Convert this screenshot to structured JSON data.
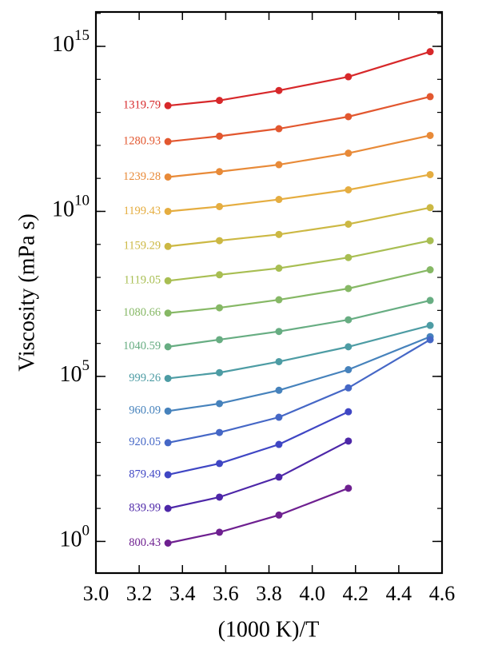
{
  "chart_data": {
    "type": "line",
    "y_label": "Viscosity (mPa s)",
    "x_label": "(1000 K)/T",
    "log_y": true,
    "x": [
      3.333,
      3.571,
      3.846,
      4.167,
      4.545
    ],
    "xlim": [
      3.0,
      4.6
    ],
    "xticks": [
      {
        "value": 3.0,
        "label": "3.0"
      },
      3.2,
      3.4,
      3.6,
      3.8,
      {
        "value": 4.0,
        "label": "4.0"
      },
      4.2,
      4.4,
      4.6
    ],
    "ylim": [
      0.11,
      1.1e+16
    ],
    "yticks": [
      {
        "value": 1,
        "label": "10^0"
      },
      {
        "value": 100000.0,
        "label": "10^5"
      },
      {
        "value": 10000000000.0,
        "label": "10^10"
      },
      {
        "value": 1000000000000000.0,
        "label": "10^15"
      }
    ],
    "series": [
      {
        "name": "1319.79",
        "color": "#d7282a",
        "values": [
          16000000000000.0,
          23000000000000.0,
          46000000000000.0,
          120000000000000.0,
          690000000000000.0
        ]
      },
      {
        "name": "1280.93",
        "color": "#e2572f",
        "values": [
          1300000000000.0,
          1900000000000.0,
          3200000000000.0,
          7400000000000.0,
          30000000000000.0
        ]
      },
      {
        "name": "1239.28",
        "color": "#e88a38",
        "values": [
          110000000000.0,
          160000000000.0,
          260000000000.0,
          580000000000.0,
          2000000000000.0
        ]
      },
      {
        "name": "1199.43",
        "color": "#e5ad40",
        "values": [
          10000000000.0,
          14000000000.0,
          23000000000.0,
          45000000000.0,
          130000000000.0
        ]
      },
      {
        "name": "1159.29",
        "color": "#ccb843",
        "values": [
          870000000.0,
          1300000000.0,
          2000000000.0,
          4100000000.0,
          13000000000.0
        ]
      },
      {
        "name": "1119.05",
        "color": "#a8be52",
        "values": [
          79000000.0,
          120000000.0,
          190000000.0,
          400000000.0,
          1300000000.0
        ]
      },
      {
        "name": "1080.66",
        "color": "#86b865",
        "values": [
          8300000.0,
          12000000.0,
          21000000.0,
          46000000.0,
          170000000.0
        ]
      },
      {
        "name": "1040.59",
        "color": "#67ad82",
        "values": [
          790000.0,
          1300000.0,
          2300000.0,
          5200000.0,
          20000000.0
        ]
      },
      {
        "name": "999.26",
        "color": "#4d9ca4",
        "values": [
          87000.0,
          130000.0,
          280000.0,
          790000.0,
          3500000.0
        ]
      },
      {
        "name": "960.09",
        "color": "#4682bc",
        "values": [
          8900.0,
          15000.0,
          38000.0,
          160000.0,
          1600000.0
        ]
      },
      {
        "name": "920.05",
        "color": "#4567c6",
        "values": [
          980,
          2000.0,
          5800.0,
          45000.0,
          1300000.0
        ]
      },
      {
        "name": "879.49",
        "color": "#3f46c4",
        "values": [
          105,
          230,
          870,
          8500.0,
          null
        ]
      },
      {
        "name": "839.99",
        "color": "#4d27a8",
        "values": [
          10,
          22,
          89,
          1100.0,
          null
        ]
      },
      {
        "name": "800.43",
        "color": "#6e2090",
        "values": [
          0.89,
          1.9,
          6.3,
          41,
          null
        ]
      }
    ]
  }
}
